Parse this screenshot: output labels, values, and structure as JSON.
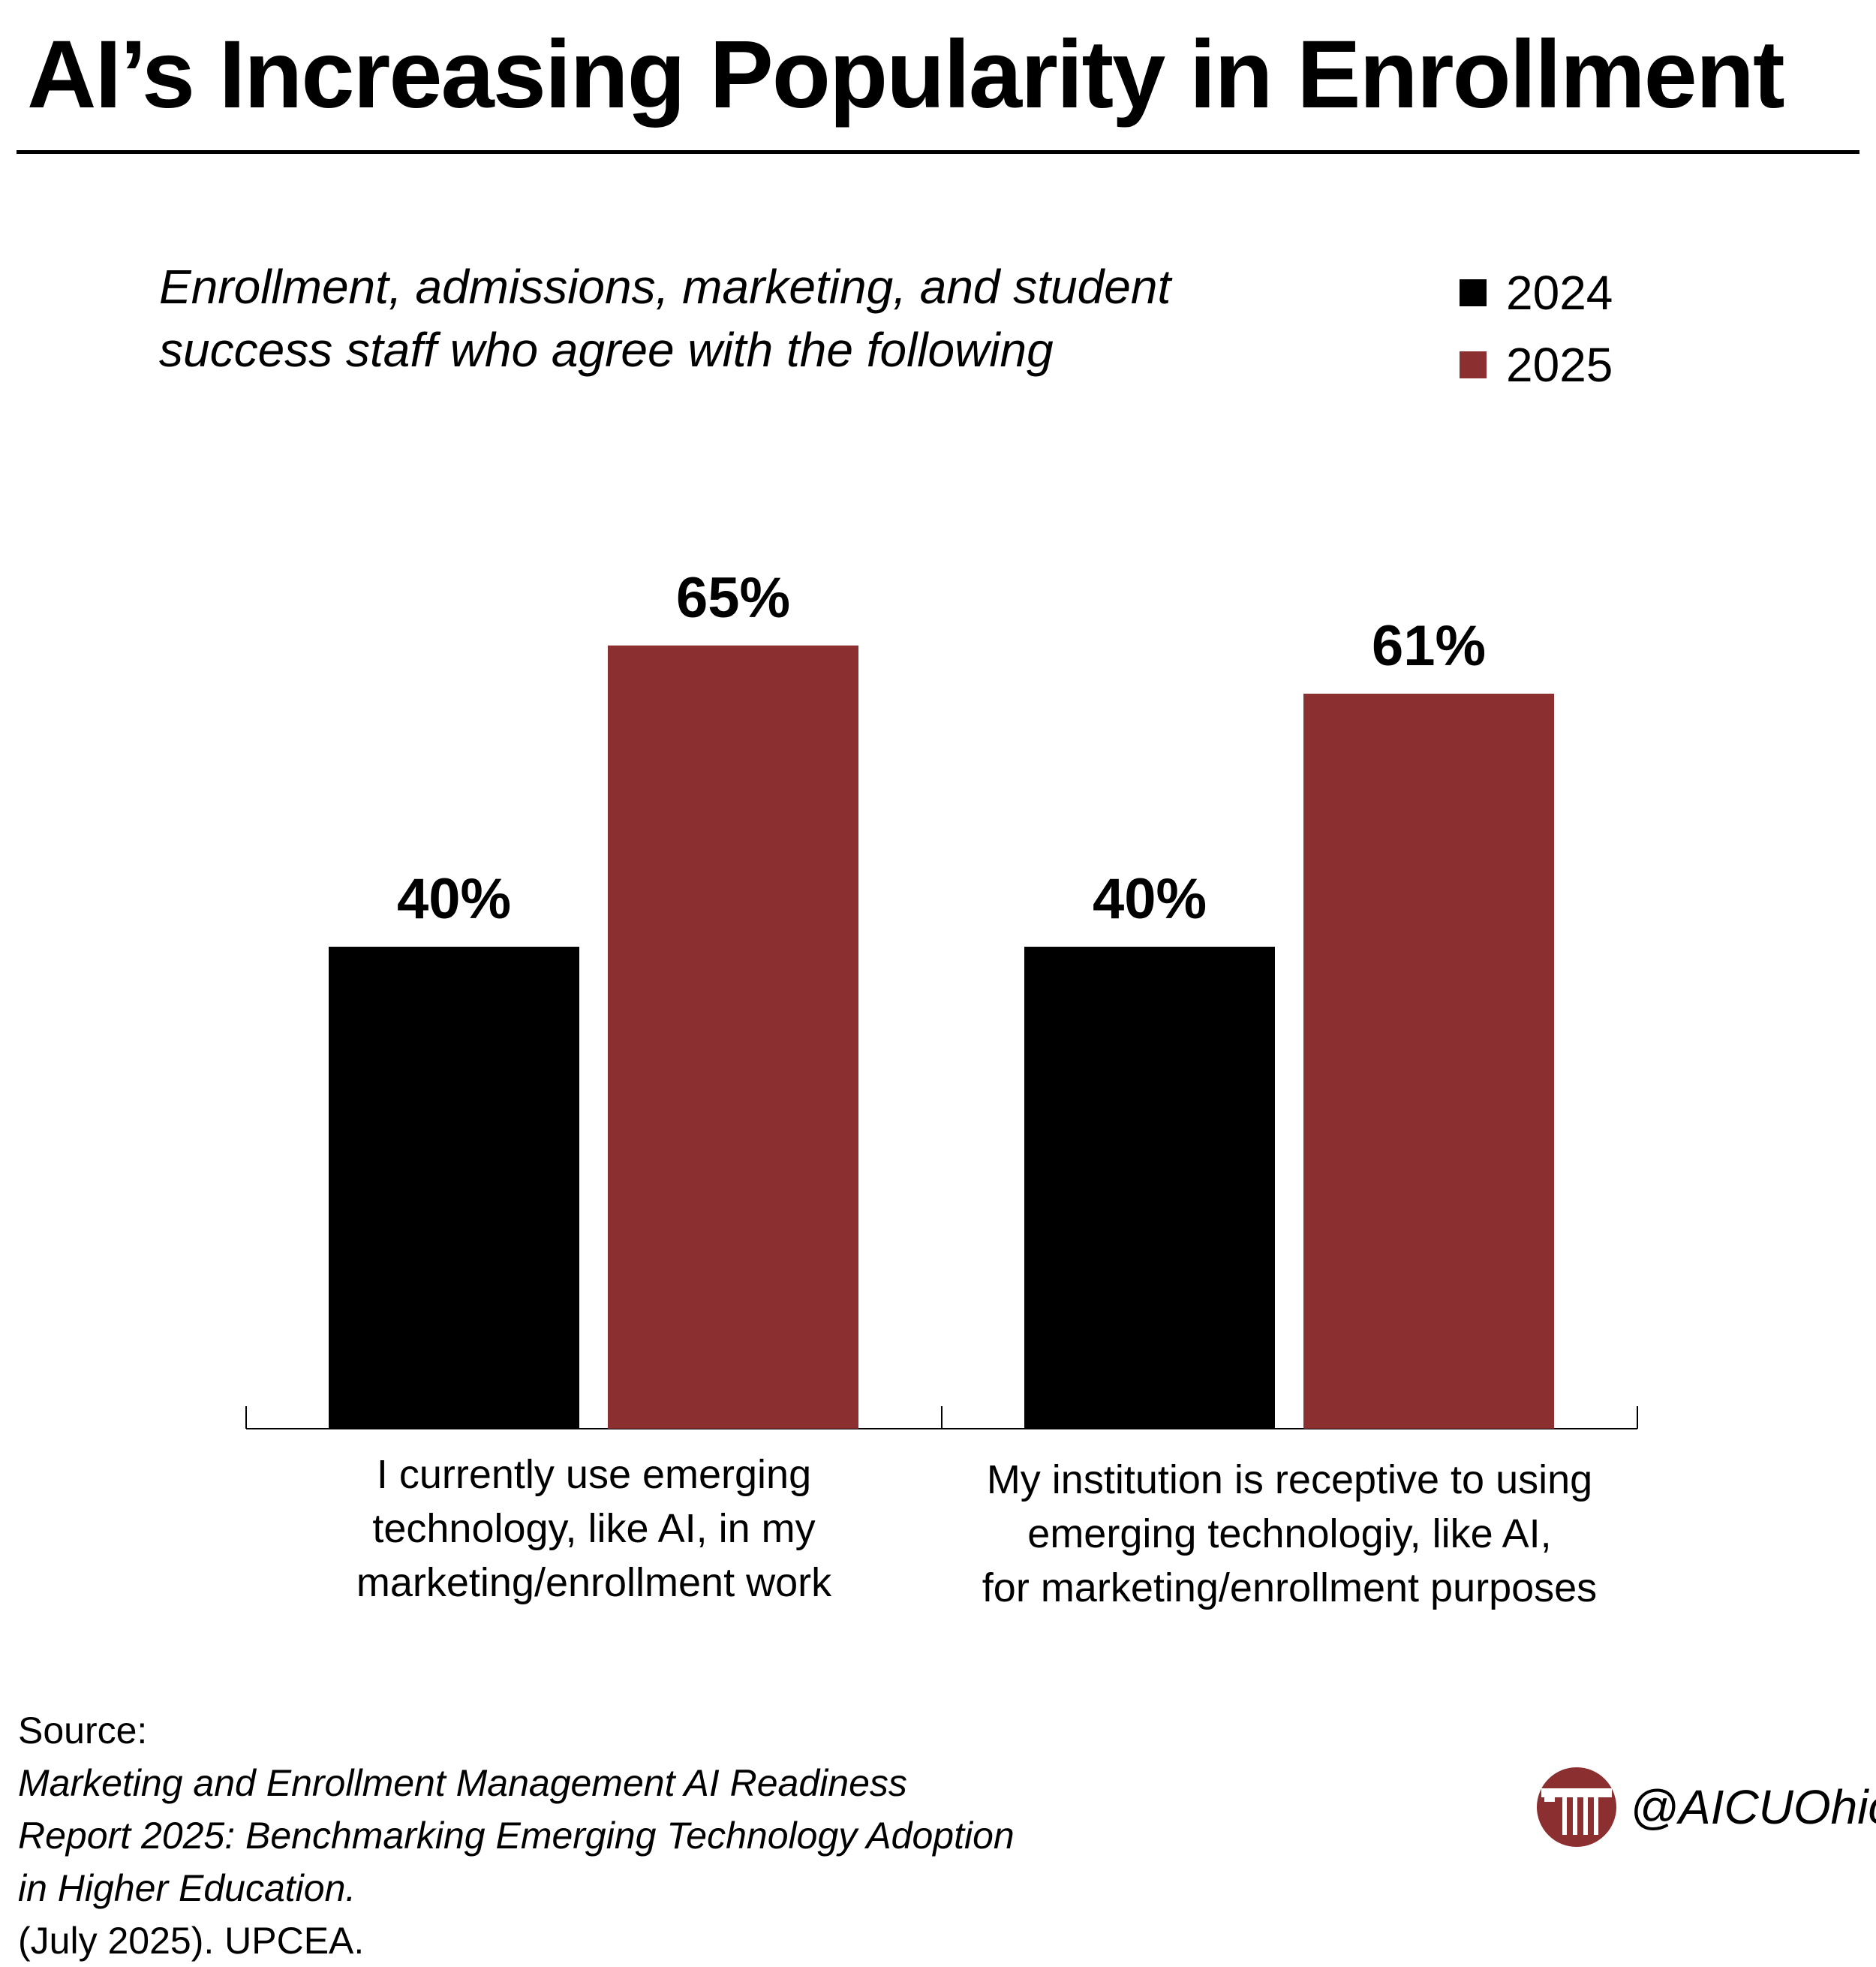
{
  "title": "AI’s Increasing Popularity in Enrollment",
  "subtitle": {
    "line1": "Enrollment, admissions, marketing, and student",
    "line2": "success staff who agree with the following"
  },
  "colors": {
    "series_2024": "#000000",
    "series_2025": "#8b2f31",
    "axis": "#000000"
  },
  "chart_data": {
    "type": "bar",
    "title": "AI’s Increasing Popularity in Enrollment",
    "xlabel": "",
    "ylabel": "",
    "ylim": [
      0,
      100
    ],
    "grid": false,
    "legend": "top-right",
    "categories": [
      "I currently use emerging technology, like AI, in my marketing/enrollment work",
      "My institution is receptive to using emerging technologiy, like AI, for marketing/enrollment purposes"
    ],
    "category_lines": [
      [
        "I currently use emerging",
        "technology, like AI, in my",
        "marketing/enrollment work"
      ],
      [
        "My institution is receptive to using",
        "emerging technologiy, like AI,",
        "for marketing/enrollment purposes"
      ]
    ],
    "series": [
      {
        "name": "2024",
        "values": [
          40,
          40
        ],
        "labels": [
          "40%",
          "40%"
        ]
      },
      {
        "name": "2025",
        "values": [
          65,
          61
        ],
        "labels": [
          "65%",
          "61%"
        ]
      }
    ]
  },
  "source": {
    "prefix": "Source: ",
    "italic_line1": "Marketing and Enrollment Management AI Readiness",
    "italic_line2": "Report 2025: Benchmarking Emerging Technology Adoption",
    "italic_line3": "in Higher Education.",
    "suffix": " (July 2025). UPCEA."
  },
  "brand": {
    "logo_icon": "aicu-column-logo-icon",
    "handle": "@AICUOhio"
  }
}
